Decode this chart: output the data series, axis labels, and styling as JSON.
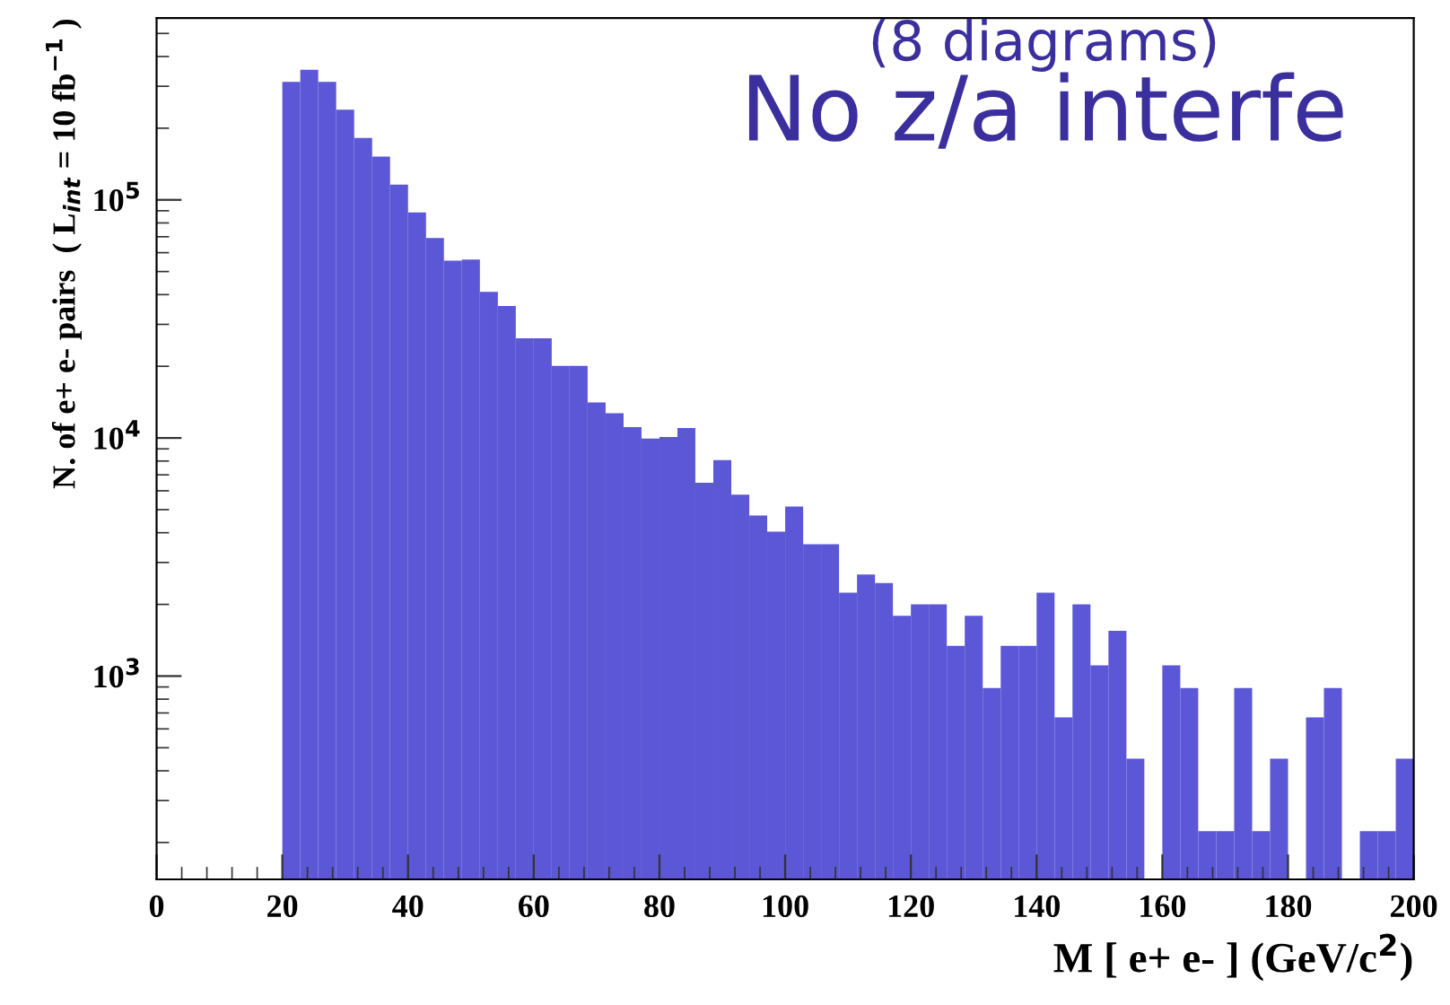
{
  "chart_data": {
    "type": "histogram",
    "xlabel": "M [ e+ e- ] (GeV/c$^{2}$)",
    "ylabel": "N. of e+ e- pairs  ( L$_{int}$ = 10 fb$^{−1}$ )",
    "annotations": [
      "(8 diagrams)",
      "No z/a interfe"
    ],
    "color": "#5b57d6",
    "bins": [
      0,
      2.86,
      5.71,
      8.57,
      11.43,
      14.29,
      17.14,
      20,
      22.86,
      25.71,
      28.57,
      31.43,
      34.29,
      37.14,
      40,
      42.86,
      45.71,
      48.57,
      51.43,
      54.29,
      57.14,
      60,
      62.86,
      65.71,
      68.57,
      71.43,
      74.29,
      77.14,
      80,
      82.86,
      85.71,
      88.57,
      91.43,
      94.29,
      97.14,
      100,
      102.86,
      105.71,
      108.57,
      111.43,
      114.29,
      117.14,
      120,
      122.86,
      125.71,
      128.57,
      131.43,
      134.29,
      137.14,
      140,
      142.86,
      145.71,
      148.57,
      151.43,
      154.29,
      157.14,
      160,
      162.86,
      165.71,
      168.57,
      171.43,
      174.29,
      177.14,
      180,
      182.86,
      185.71,
      188.57,
      191.43,
      194.29,
      197.14,
      200
    ],
    "values": [
      null,
      null,
      null,
      null,
      null,
      null,
      null,
      313000,
      352000,
      313000,
      239000,
      182000,
      152000,
      116000,
      88600,
      69200,
      55500,
      56200,
      41100,
      35800,
      26200,
      26200,
      20100,
      20100,
      14100,
      12700,
      11100,
      9950,
      10100,
      11000,
      6490,
      8070,
      5780,
      4720,
      4040,
      5150,
      3580,
      3580,
      2240,
      2670,
      2460,
      1790,
      2000,
      2000,
      1340,
      1790,
      890,
      1340,
      1340,
      2240,
      670,
      2000,
      1110,
      1550,
      450,
      null,
      1110,
      890,
      223,
      223,
      890,
      223,
      450,
      null,
      670,
      890,
      null,
      223,
      223,
      450
    ],
    "log": "y",
    "xlim": [
      0,
      200
    ],
    "xticks": [
      0,
      20,
      40,
      60,
      80,
      100,
      120,
      140,
      160,
      180,
      200
    ],
    "ylim": [
      140,
      580000
    ],
    "yticks": [
      {
        "value": 1000,
        "label": "10$^{3}$"
      },
      {
        "value": 10000,
        "label": "10$^{4}$"
      },
      {
        "value": 100000,
        "label": "10$^{5}$"
      }
    ],
    "grid": false,
    "legend": false
  }
}
